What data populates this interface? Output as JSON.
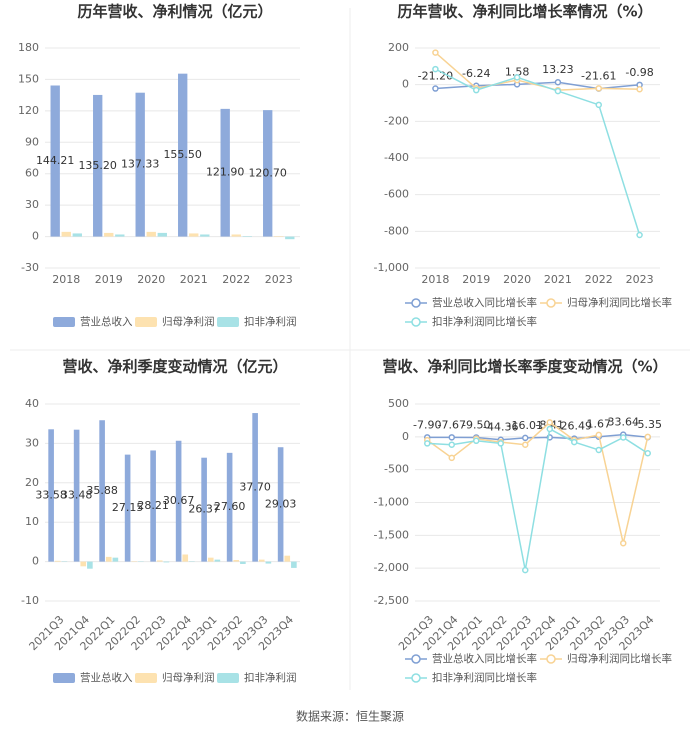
{
  "chart_data": [
    {
      "type": "bar",
      "title": "历年营收、净利情况（亿元）",
      "categories": [
        "2018",
        "2019",
        "2020",
        "2021",
        "2022",
        "2023"
      ],
      "series": [
        {
          "name": "营业总收入",
          "color": "#8eaadb",
          "values": [
            144.21,
            135.2,
            137.33,
            155.5,
            121.9,
            120.7
          ],
          "value_labels": [
            "144.21",
            "135.20",
            "137.33",
            "155.50",
            "121.90",
            "120.70"
          ]
        },
        {
          "name": "归母净利润",
          "color": "#fde2b0",
          "values": [
            4.5,
            3.5,
            4.5,
            3,
            2,
            0.5
          ]
        },
        {
          "name": "扣非净利润",
          "color": "#a8e2e6",
          "values": [
            3,
            2,
            3.5,
            2,
            0.5,
            -2.5
          ]
        }
      ],
      "ylim": [
        -30,
        180
      ],
      "yticks": [
        -30,
        0,
        30,
        60,
        90,
        120,
        150,
        180
      ],
      "grid": true
    },
    {
      "type": "line",
      "title": "历年营收、净利同比增长率情况（%）",
      "categories": [
        "2018",
        "2019",
        "2020",
        "2021",
        "2022",
        "2023"
      ],
      "series": [
        {
          "name": "营业总收入同比增长率",
          "color": "#7f9fd3",
          "values": [
            -21.2,
            -6.24,
            1.58,
            13.23,
            -21.61,
            -0.98
          ],
          "value_labels": [
            "-21.20",
            "-6.24",
            "1.58",
            "13.23",
            "-21.61",
            "-0.98"
          ]
        },
        {
          "name": "归母净利润同比增长率",
          "color": "#f8d394",
          "values": [
            175,
            -20,
            25,
            -30,
            -20,
            -25
          ]
        },
        {
          "name": "扣非净利润同比增长率",
          "color": "#8edfe2",
          "values": [
            85,
            -30,
            40,
            -35,
            -110,
            -820
          ]
        }
      ],
      "ylim": [
        -1000,
        200
      ],
      "yticks": [
        {
          "value": -1000,
          "label": "-1,000"
        },
        -800,
        -600,
        -400,
        -200,
        0,
        200
      ],
      "grid": true
    },
    {
      "type": "bar",
      "title": "营收、净利季度变动情况（亿元）",
      "categories": [
        "2021Q3",
        "2021Q4",
        "2022Q1",
        "2022Q2",
        "2022Q3",
        "2022Q4",
        "2023Q1",
        "2023Q2",
        "2023Q3",
        "2023Q4"
      ],
      "series": [
        {
          "name": "营业总收入",
          "color": "#8eaadb",
          "values": [
            33.58,
            33.48,
            35.88,
            27.15,
            28.21,
            30.67,
            26.37,
            27.6,
            37.7,
            29.03
          ],
          "value_labels": [
            "33.58",
            "33.48",
            "35.88",
            "27.15",
            "28.21",
            "30.67",
            "26.37",
            "27.60",
            "37.70",
            "29.03"
          ]
        },
        {
          "name": "归母净利润",
          "color": "#fde2b0",
          "values": [
            0.2,
            -1.2,
            1.2,
            0.1,
            0.3,
            1.8,
            1.0,
            0.4,
            0.5,
            1.5
          ]
        },
        {
          "name": "扣非净利润",
          "color": "#a8e2e6",
          "values": [
            0.1,
            -1.8,
            1.0,
            -0.1,
            -0.2,
            0.1,
            0.5,
            -0.6,
            -0.5,
            -1.6
          ]
        }
      ],
      "ylim": [
        -10,
        40
      ],
      "yticks": [
        -10,
        0,
        10,
        20,
        30,
        40
      ],
      "grid": true
    },
    {
      "type": "line",
      "title": "营收、净利同比增长率季度变动情况（%）",
      "categories": [
        "2021Q3",
        "2021Q4",
        "2022Q1",
        "2022Q2",
        "2022Q3",
        "2022Q4",
        "2023Q1",
        "2023Q2",
        "2023Q3",
        "2023Q4"
      ],
      "series": [
        {
          "name": "营业总收入同比增长率",
          "color": "#7f9fd3",
          "values": [
            -7.9,
            -7.67,
            -9.5,
            -44.36,
            -16.01,
            -8.41,
            -26.49,
            1.67,
            33.64,
            -5.35
          ],
          "value_labels": [
            "-7.90",
            "-7.67",
            "-9.50",
            "-44.36",
            "-16.01",
            "-8.41",
            "-26.49",
            "1.67",
            "33.64",
            "-5.35"
          ]
        },
        {
          "name": "归母净利润同比增长率",
          "color": "#f8d394",
          "values": [
            -50,
            -320,
            -30,
            -80,
            -120,
            220,
            -50,
            30,
            -1620,
            0
          ]
        },
        {
          "name": "扣非净利润同比增长率",
          "color": "#8edfe2",
          "values": [
            -100,
            -120,
            -60,
            -100,
            -2030,
            120,
            -80,
            -200,
            -10,
            -250
          ]
        }
      ],
      "ylim": [
        -2500,
        500
      ],
      "yticks": [
        {
          "value": -2500,
          "label": "-2,500"
        },
        {
          "value": -2000,
          "label": "-2,000"
        },
        {
          "value": -1500,
          "label": "-1,500"
        },
        {
          "value": -1000,
          "label": "-1,000"
        },
        -500,
        0,
        500
      ],
      "grid": true
    }
  ],
  "source": "数据来源：恒生聚源"
}
